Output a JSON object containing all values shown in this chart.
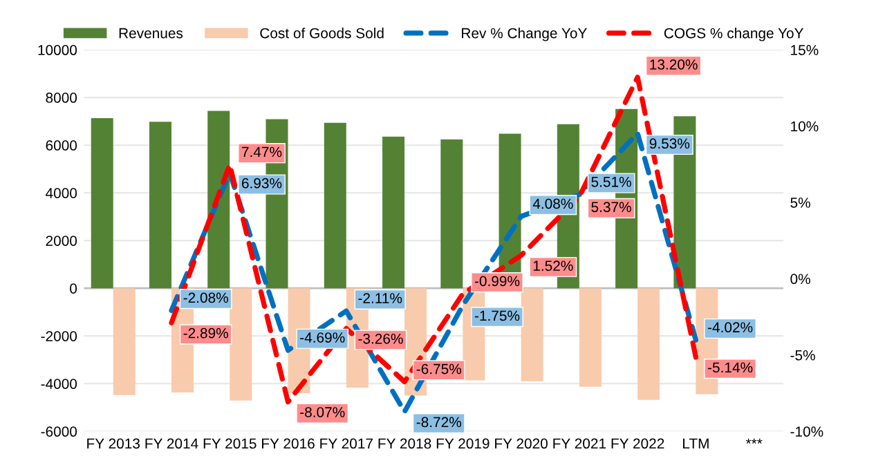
{
  "chart_data": {
    "type": "bar",
    "categories": [
      "FY 2013",
      "FY 2014",
      "FY 2015",
      "FY 2016",
      "FY 2017",
      "FY 2018",
      "FY 2019",
      "FY 2020",
      "FY 2021",
      "FY 2022",
      "LTM",
      "***"
    ],
    "series": [
      {
        "name": "Revenues",
        "color": "#548235",
        "values": [
          7130,
          6980,
          7440,
          7090,
          6940,
          6360,
          6240,
          6480,
          6880,
          7520,
          7210,
          null
        ]
      },
      {
        "name": "Cost of Goods Sold",
        "color": "#f8cbad",
        "values": [
          -4480,
          -4370,
          -4710,
          -4400,
          -4170,
          -4500,
          -3860,
          -3900,
          -4130,
          -4680,
          -4440,
          null
        ]
      },
      {
        "name": "Rev % Change YoY",
        "type": "line",
        "axis": "y2",
        "color": "#0070c0",
        "line_style": "dashed",
        "values": [
          null,
          -2.08,
          6.93,
          -4.69,
          -2.11,
          -8.72,
          -1.75,
          4.08,
          5.51,
          9.53,
          -4.02,
          null
        ],
        "value_labels": [
          null,
          "-2.08%",
          "6.93%",
          "-4.69%",
          "-2.11%",
          "-8.72%",
          "-1.75%",
          "4.08%",
          "5.51%",
          "9.53%",
          "-4.02%",
          null
        ]
      },
      {
        "name": "COGS % change YoY",
        "type": "line",
        "axis": "y2",
        "color": "#ff0000",
        "line_style": "dashed",
        "values": [
          null,
          -2.89,
          7.47,
          -8.07,
          -3.26,
          -6.75,
          -0.99,
          1.52,
          5.37,
          13.2,
          -5.14,
          null
        ],
        "value_labels": [
          null,
          "-2.89%",
          "7.47%",
          "-8.07%",
          "-3.26%",
          "-6.75%",
          "-0.99%",
          "1.52%",
          "5.37%",
          "13.20%",
          "-5.14%",
          null
        ]
      }
    ],
    "ylim": [
      -6000,
      10000
    ],
    "yticks": [
      -6000,
      -4000,
      -2000,
      0,
      2000,
      4000,
      6000,
      8000,
      10000
    ],
    "y2lim": [
      -10,
      15
    ],
    "y2ticks": [
      {
        "value": -10,
        "label": "-10%"
      },
      {
        "value": -5,
        "label": "-5%"
      },
      {
        "value": 0,
        "label": "0%"
      },
      {
        "value": 5,
        "label": "5%"
      },
      {
        "value": 10,
        "label": "10%"
      },
      {
        "value": 15,
        "label": "15%"
      }
    ],
    "grid": "y",
    "legend": "top"
  }
}
